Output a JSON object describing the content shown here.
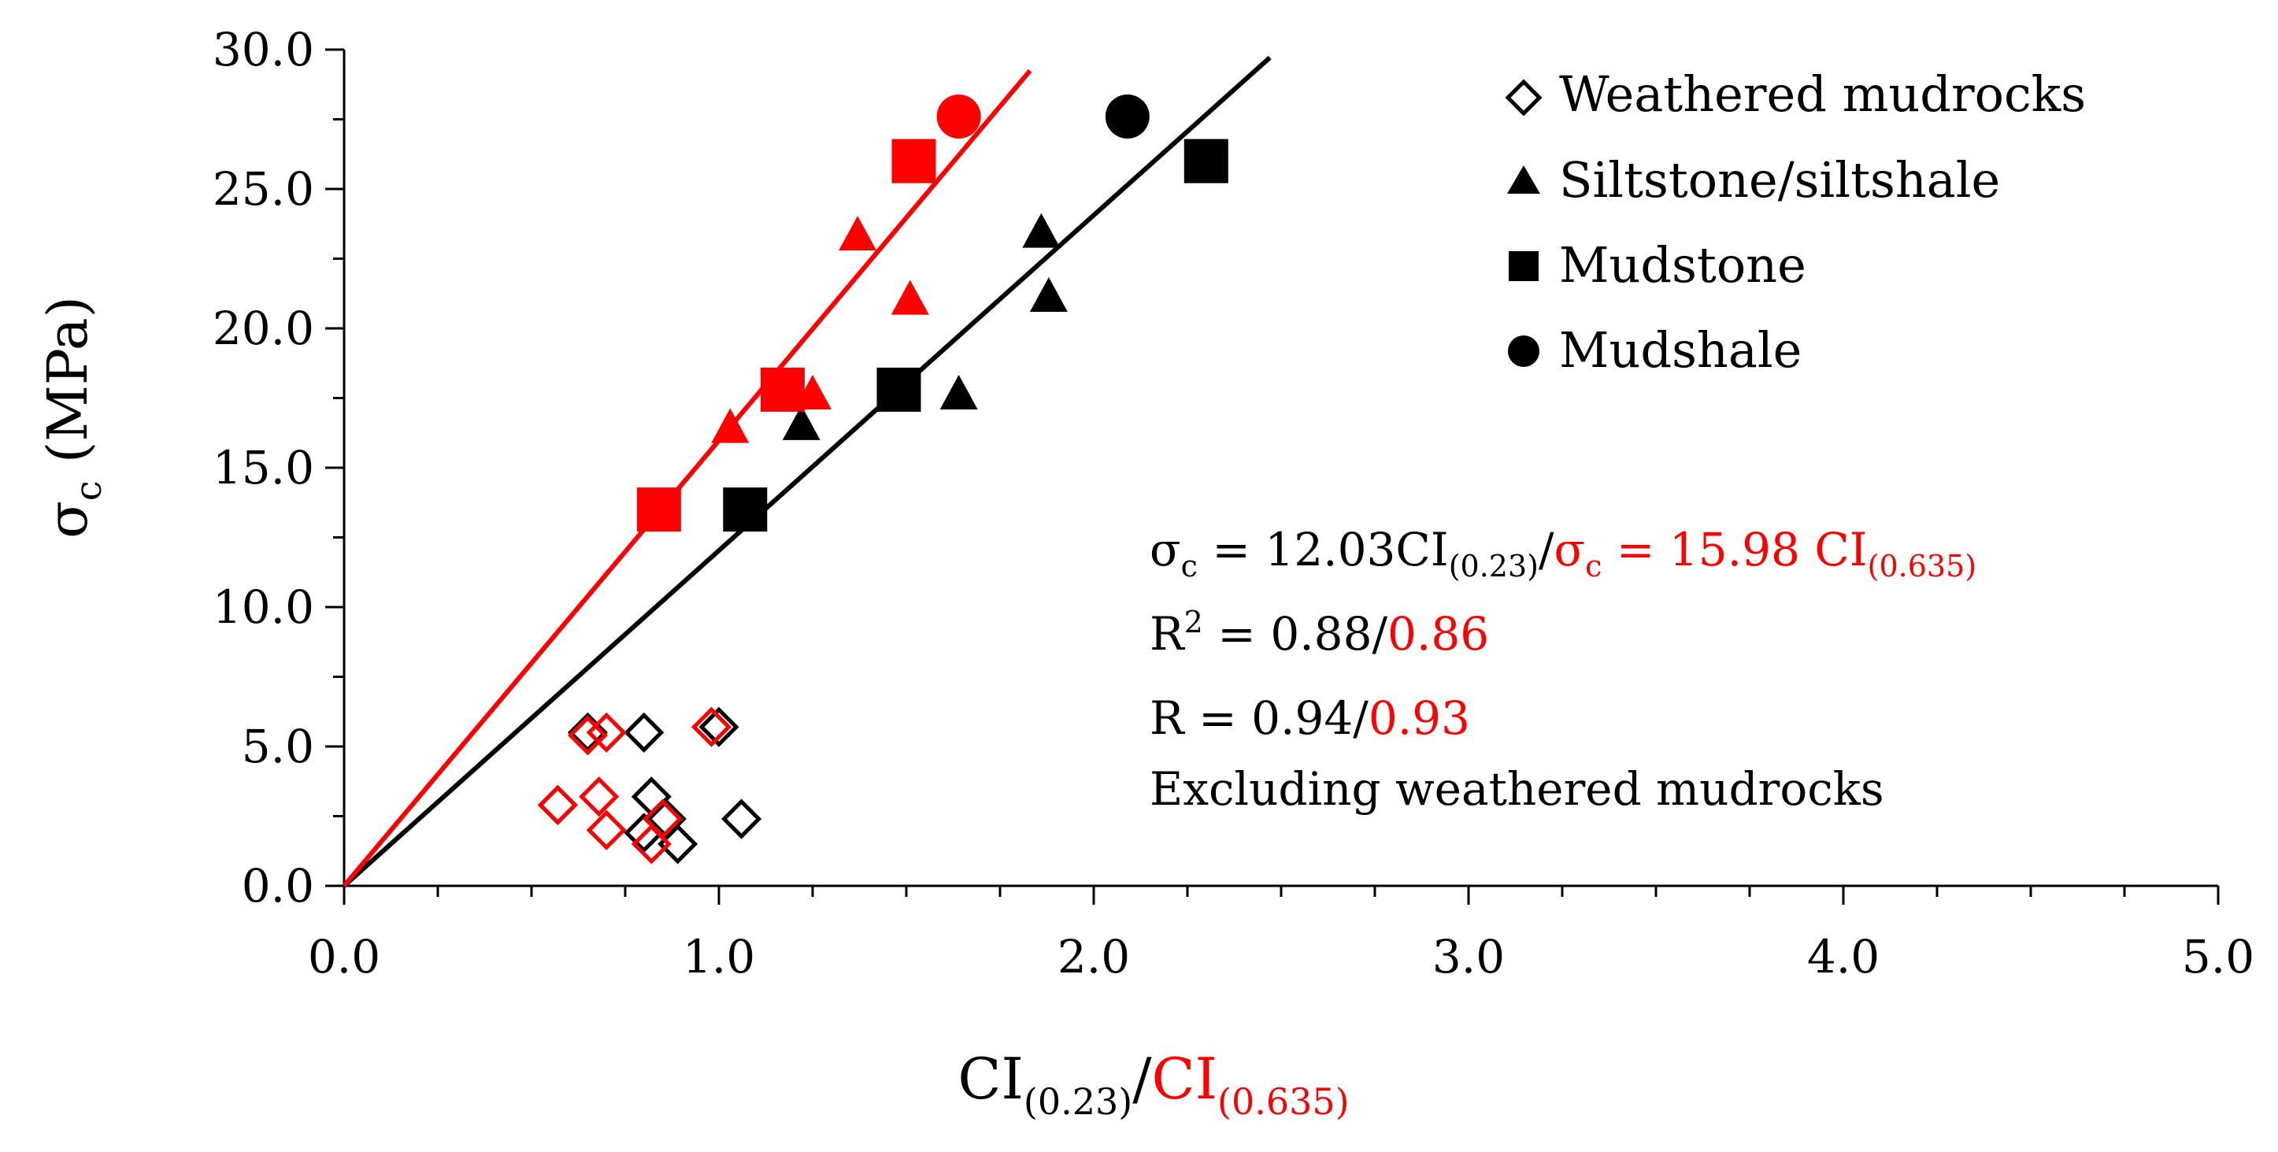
{
  "chart_data": {
    "type": "scatter",
    "title": "",
    "xlim": [
      0,
      5
    ],
    "ylim": [
      0,
      30
    ],
    "x_ticks": [
      0,
      1,
      2,
      3,
      4,
      5
    ],
    "x_tick_labels": [
      "0.0",
      "1.0",
      "2.0",
      "3.0",
      "4.0",
      "5.0"
    ],
    "x_minor_step": 0.25,
    "y_ticks": [
      0,
      5,
      10,
      15,
      20,
      25,
      30
    ],
    "y_tick_labels": [
      "0.0",
      "5.0",
      "10.0",
      "15.0",
      "20.0",
      "25.0",
      "30.0"
    ],
    "y_minor_step": 2.5,
    "xlabel": {
      "main": "CI",
      "sub": "(0.23)",
      "slash": "/",
      "main2": "CI",
      "sub2": "(0.635)"
    },
    "ylabel": {
      "main": "σ",
      "sub": "c",
      "rest": " (MPa)"
    },
    "colors": {
      "ci023": "#000000",
      "ci0635": "#ff0000"
    },
    "legend": {
      "placement": "top-right",
      "items": [
        {
          "label": "Weathered mudrocks",
          "marker": "diamond-open"
        },
        {
          "label": "Siltstone/siltshale",
          "marker": "triangle"
        },
        {
          "label": "Mudstone",
          "marker": "square"
        },
        {
          "label": "Mudshale",
          "marker": "circle"
        }
      ]
    },
    "annotations": {
      "eq_black": {
        "sigma": "σ",
        "sub": "c",
        "text": " = 12.03CI",
        "ci_sub": "(0.23)"
      },
      "eq_slash": "/",
      "eq_red": {
        "sigma": "σ",
        "sub": "c",
        "text": " = 15.98 CI",
        "ci_sub": "(0.635)"
      },
      "r2": {
        "label": "R",
        "sup": "2",
        "value_black": " = 0.88/",
        "value_red": "0.86"
      },
      "r": {
        "label": "R = 0.94/",
        "value_red": "0.93"
      },
      "note": "Excluding weathered mudrocks"
    },
    "series": [
      {
        "name": "CI(0.23)",
        "color": "#000000",
        "fit_line": {
          "slope": 12.03,
          "x_end": 2.47
        },
        "siltstone": [
          [
            1.22,
            16.5
          ],
          [
            1.64,
            17.6
          ],
          [
            1.86,
            23.4
          ],
          [
            1.88,
            21.1
          ]
        ],
        "mudstone": [
          [
            1.07,
            13.5
          ],
          [
            1.48,
            17.8
          ],
          [
            2.3,
            26.0
          ]
        ],
        "mudshale": [
          [
            2.09,
            27.6
          ]
        ],
        "weathered": [
          [
            0.57,
            2.9
          ],
          [
            0.65,
            5.5
          ],
          [
            0.8,
            5.5
          ],
          [
            0.82,
            3.2
          ],
          [
            0.8,
            1.9
          ],
          [
            0.86,
            2.4
          ],
          [
            0.89,
            1.5
          ],
          [
            1.0,
            5.7
          ],
          [
            1.06,
            2.4
          ]
        ]
      },
      {
        "name": "CI(0.635)",
        "color": "#ff0000",
        "fit_line": {
          "slope": 15.98,
          "x_end": 1.83
        },
        "siltstone": [
          [
            1.03,
            16.4
          ],
          [
            1.25,
            17.6
          ],
          [
            1.37,
            23.3
          ],
          [
            1.51,
            21.0
          ]
        ],
        "mudstone": [
          [
            0.84,
            13.5
          ],
          [
            1.17,
            17.8
          ],
          [
            1.52,
            26.0
          ]
        ],
        "mudshale": [
          [
            1.64,
            27.6
          ]
        ],
        "weathered": [
          [
            0.57,
            2.9
          ],
          [
            0.65,
            5.4
          ],
          [
            0.7,
            5.5
          ],
          [
            0.68,
            3.2
          ],
          [
            0.7,
            2.0
          ],
          [
            0.82,
            1.5
          ],
          [
            0.85,
            2.4
          ],
          [
            0.98,
            5.7
          ]
        ]
      }
    ]
  }
}
